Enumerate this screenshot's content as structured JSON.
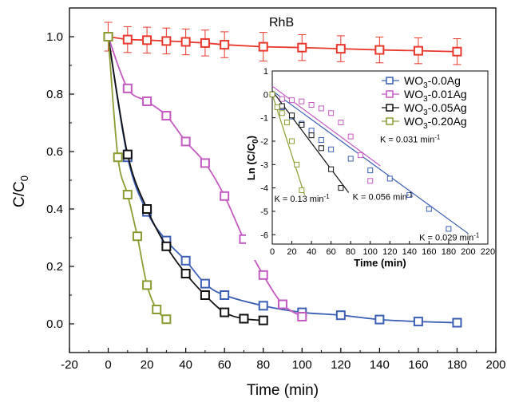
{
  "chart_data": [
    {
      "type": "line",
      "title": "",
      "xlabel": "Time (min)",
      "ylabel": "C/C",
      "ylabel_sub": "0",
      "xlim": [
        -20,
        200
      ],
      "ylim": [
        -0.1,
        1.1
      ],
      "xticks": [
        -20,
        0,
        20,
        40,
        60,
        80,
        100,
        120,
        140,
        160,
        180,
        200
      ],
      "yticks": [
        0.0,
        0.2,
        0.4,
        0.6,
        0.8,
        1.0
      ],
      "ytick_labels": [
        "0.0",
        "0.2",
        "0.4",
        "0.6",
        "0.8",
        "1.0"
      ],
      "grid": false,
      "annotations": [
        {
          "text": "RhB",
          "x": 83,
          "y": 1.05,
          "color": "#e8382b"
        }
      ],
      "series": [
        {
          "key": "rhb",
          "color": "#e8382b",
          "marker": "square-open",
          "error_bars": true,
          "x": [
            0,
            10,
            20,
            30,
            40,
            50,
            60,
            80,
            100,
            120,
            140,
            160,
            180
          ],
          "y": [
            1.0,
            0.99,
            0.988,
            0.985,
            0.982,
            0.978,
            0.972,
            0.965,
            0.962,
            0.958,
            0.954,
            0.951,
            0.948
          ],
          "err": [
            0.05,
            0.045,
            0.045,
            0.045,
            0.045,
            0.045,
            0.045,
            0.05,
            0.045,
            0.045,
            0.045,
            0.045,
            0.045
          ]
        },
        {
          "key": "wo3_0ag",
          "color": "#3a5fb4",
          "marker": "square-open",
          "x": [
            0,
            10,
            20,
            30,
            40,
            50,
            60,
            80,
            100,
            120,
            140,
            160,
            180
          ],
          "y": [
            1.0,
            0.58,
            0.39,
            0.29,
            0.22,
            0.14,
            0.1,
            0.063,
            0.04,
            0.03,
            0.015,
            0.008,
            0.004
          ]
        },
        {
          "key": "wo3_001ag",
          "color": "#c459c2",
          "marker": "square-open",
          "x": [
            0,
            10,
            20,
            30,
            40,
            50,
            60,
            70,
            80,
            90,
            100
          ],
          "y": [
            1.0,
            0.82,
            0.775,
            0.725,
            0.635,
            0.56,
            0.445,
            0.295,
            0.17,
            0.068,
            0.025
          ]
        },
        {
          "key": "wo3_005ag",
          "color": "#111111",
          "marker": "square-open",
          "x": [
            0,
            10,
            20,
            30,
            40,
            50,
            60,
            70,
            80
          ],
          "y": [
            1.0,
            0.59,
            0.4,
            0.27,
            0.175,
            0.1,
            0.04,
            0.018,
            0.012
          ]
        },
        {
          "key": "wo3_020ag",
          "color": "#8c9b32",
          "marker": "square-open",
          "x": [
            0,
            5,
            10,
            15,
            20,
            25,
            30
          ],
          "y": [
            1.0,
            0.58,
            0.45,
            0.305,
            0.135,
            0.05,
            0.016
          ]
        }
      ]
    },
    {
      "type": "scatter",
      "title": "",
      "xlabel": "Time (min)",
      "ylabel": "Ln (C/C",
      "ylabel_sub": "0",
      "ylabel_close": ")",
      "xlim": [
        0,
        220
      ],
      "ylim": [
        -6.4,
        1.0
      ],
      "xticks": [
        0,
        20,
        40,
        60,
        80,
        100,
        120,
        140,
        160,
        180,
        200,
        220
      ],
      "yticks": [
        1,
        0,
        -1,
        -2,
        -3,
        -4,
        -5,
        -6
      ],
      "legend": {
        "placement": "top-right",
        "entries": [
          {
            "prefix": "WO",
            "sub": "3",
            "suffix": "-0.0Ag",
            "color": "#3a5fb4"
          },
          {
            "prefix": "WO",
            "sub": "3",
            "suffix": "-0.01Ag",
            "color": "#c459c2"
          },
          {
            "prefix": "WO",
            "sub": "3",
            "suffix": "-0.05Ag",
            "color": "#111111"
          },
          {
            "prefix": "WO",
            "sub": "3",
            "suffix": "-0.20Ag",
            "color": "#8c9b32"
          }
        ]
      },
      "annotations": [
        {
          "text": "K = 0.031 min",
          "sup": "-1",
          "x": 110,
          "y": -2.05
        },
        {
          "text": "K = 0.056 min",
          "sup": "-1",
          "x": 82,
          "y": -4.5
        },
        {
          "text": "K = 0.13 min",
          "sup": "-1",
          "x": 2,
          "y": -4.6
        },
        {
          "text": "K = 0.029 min",
          "sup": "-1",
          "x": 150,
          "y": -6.25
        }
      ],
      "series": [
        {
          "key": "wo3_0ag",
          "color": "#3a5fb4",
          "x": [
            0,
            10,
            20,
            30,
            40,
            50,
            60,
            80,
            100,
            120,
            140,
            160,
            180
          ],
          "y": [
            0,
            -0.55,
            -0.95,
            -1.25,
            -1.55,
            -1.95,
            -2.35,
            -2.75,
            -3.25,
            -3.6,
            -4.3,
            -4.9,
            -5.75
          ],
          "fit": {
            "x": [
              0,
              200
            ],
            "y": [
              0.15,
              -5.95
            ]
          }
        },
        {
          "key": "wo3_001ag",
          "color": "#c459c2",
          "x": [
            0,
            10,
            20,
            30,
            40,
            50,
            60,
            70,
            80,
            90,
            100
          ],
          "y": [
            0,
            -0.2,
            -0.25,
            -0.3,
            -0.45,
            -0.6,
            -0.8,
            -1.2,
            -1.8,
            -2.6,
            -3.7
          ],
          "fit": {
            "x": [
              0,
              110
            ],
            "y": [
              0.35,
              -3.05
            ]
          }
        },
        {
          "key": "wo3_005ag",
          "color": "#111111",
          "x": [
            0,
            10,
            20,
            30,
            40,
            50,
            60,
            70
          ],
          "y": [
            0,
            -0.5,
            -0.9,
            -1.3,
            -1.75,
            -2.3,
            -3.2,
            -4.0
          ],
          "fit": {
            "x": [
              0,
              78
            ],
            "y": [
              0.15,
              -4.2
            ]
          }
        },
        {
          "key": "wo3_020ag",
          "color": "#8c9b32",
          "x": [
            0,
            5,
            10,
            15,
            20,
            25,
            30
          ],
          "y": [
            0,
            -0.55,
            -0.8,
            -1.2,
            -2.0,
            -3.0,
            -4.1
          ],
          "fit": {
            "x": [
              0,
              33
            ],
            "y": [
              0.0,
              -4.3
            ]
          }
        }
      ]
    }
  ]
}
